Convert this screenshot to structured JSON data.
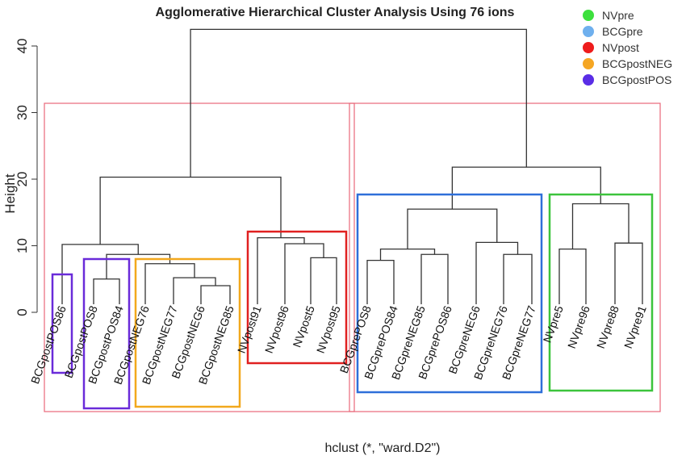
{
  "chart_data": {
    "type": "dendrogram",
    "title": "Agglomerative Hierarchical Cluster Analysis Using 76 ions",
    "ylabel": "Height",
    "xlabel": "hclust (*, \"ward.D2\")",
    "yticks": [
      0,
      10,
      20,
      30,
      40
    ],
    "ylim": [
      -15,
      45
    ],
    "leaves": [
      "BCGpostPOS86",
      "BCGpostPOS8",
      "BCGpostPOS84",
      "BCGpostNEG76",
      "BCGpostNEG77",
      "BCGpostNEG6",
      "BCGpostNEG85",
      "NVpost91",
      "NVpost96",
      "NVpost5",
      "NVpost95",
      "BCGprePOS8",
      "BCGprePOS84",
      "BCGpreNEG85",
      "BCGprePOS86",
      "BCGpreNEG6",
      "BCGpreNEG76",
      "BCGpreNEG77",
      "NVpre5",
      "NVpre96",
      "NVpre88",
      "NVpre91"
    ],
    "merges": [
      {
        "left": "L1",
        "right": "L2",
        "height": 5.0
      },
      {
        "left": "L5",
        "right": "L6",
        "height": 4.0
      },
      {
        "left": "L4",
        "right": "M1",
        "height": 5.2
      },
      {
        "left": "L3",
        "right": "M2",
        "height": 7.3
      },
      {
        "left": "M3",
        "right": "M0",
        "height": 8.7
      },
      {
        "left": "L0",
        "right": "M4",
        "height": 10.2
      },
      {
        "left": "L9",
        "right": "L10",
        "height": 8.2
      },
      {
        "left": "L8",
        "right": "M6",
        "height": 10.3
      },
      {
        "left": "L7",
        "right": "M7",
        "height": 11.2
      },
      {
        "left": "M5",
        "right": "M8",
        "height": 20.3
      },
      {
        "left": "L11",
        "right": "L12",
        "height": 7.8
      },
      {
        "left": "L13",
        "right": "L14",
        "height": 8.7
      },
      {
        "left": "M10",
        "right": "M11",
        "height": 9.5
      },
      {
        "left": "L16",
        "right": "L17",
        "height": 8.7
      },
      {
        "left": "L15",
        "right": "M13",
        "height": 10.5
      },
      {
        "left": "M12",
        "right": "M14",
        "height": 15.5
      },
      {
        "left": "L18",
        "right": "L19",
        "height": 9.5
      },
      {
        "left": "L20",
        "right": "L21",
        "height": 10.4
      },
      {
        "left": "M16",
        "right": "M17",
        "height": 16.3
      },
      {
        "left": "M15",
        "right": "M18",
        "height": 21.8
      },
      {
        "left": "M9",
        "right": "M19",
        "height": 42.5
      }
    ],
    "cluster_boxes": [
      {
        "name": "BCGpostPOS",
        "color": "#6a2bd9",
        "leaves": [
          0,
          0
        ]
      },
      {
        "name": "BCGpostPOS",
        "color": "#6a2bd9",
        "leaves": [
          1,
          2
        ]
      },
      {
        "name": "BCGpostNEG",
        "color": "#f2a81d",
        "leaves": [
          3,
          6
        ]
      },
      {
        "name": "NVpost",
        "color": "#e02020",
        "leaves": [
          7,
          10
        ]
      },
      {
        "name": "BCGpre",
        "color": "#2e6fd9",
        "leaves": [
          11,
          17
        ]
      },
      {
        "name": "NVpre",
        "color": "#3cc43c",
        "leaves": [
          18,
          21
        ]
      }
    ],
    "outer_boxes": [
      {
        "color": "#e8687a",
        "leaves": [
          0,
          10
        ]
      },
      {
        "color": "#e8687a",
        "leaves": [
          11,
          21
        ]
      }
    ],
    "legend": {
      "position": "top-right",
      "entries": [
        {
          "label": "NVpre",
          "color": "#3de03d"
        },
        {
          "label": "BCGpre",
          "color": "#6fb0ee"
        },
        {
          "label": "NVpost",
          "color": "#ee1c1c"
        },
        {
          "label": "BCGpostNEG",
          "color": "#f5a623"
        },
        {
          "label": "BCGpostPOS",
          "color": "#5a2de6"
        }
      ]
    }
  }
}
